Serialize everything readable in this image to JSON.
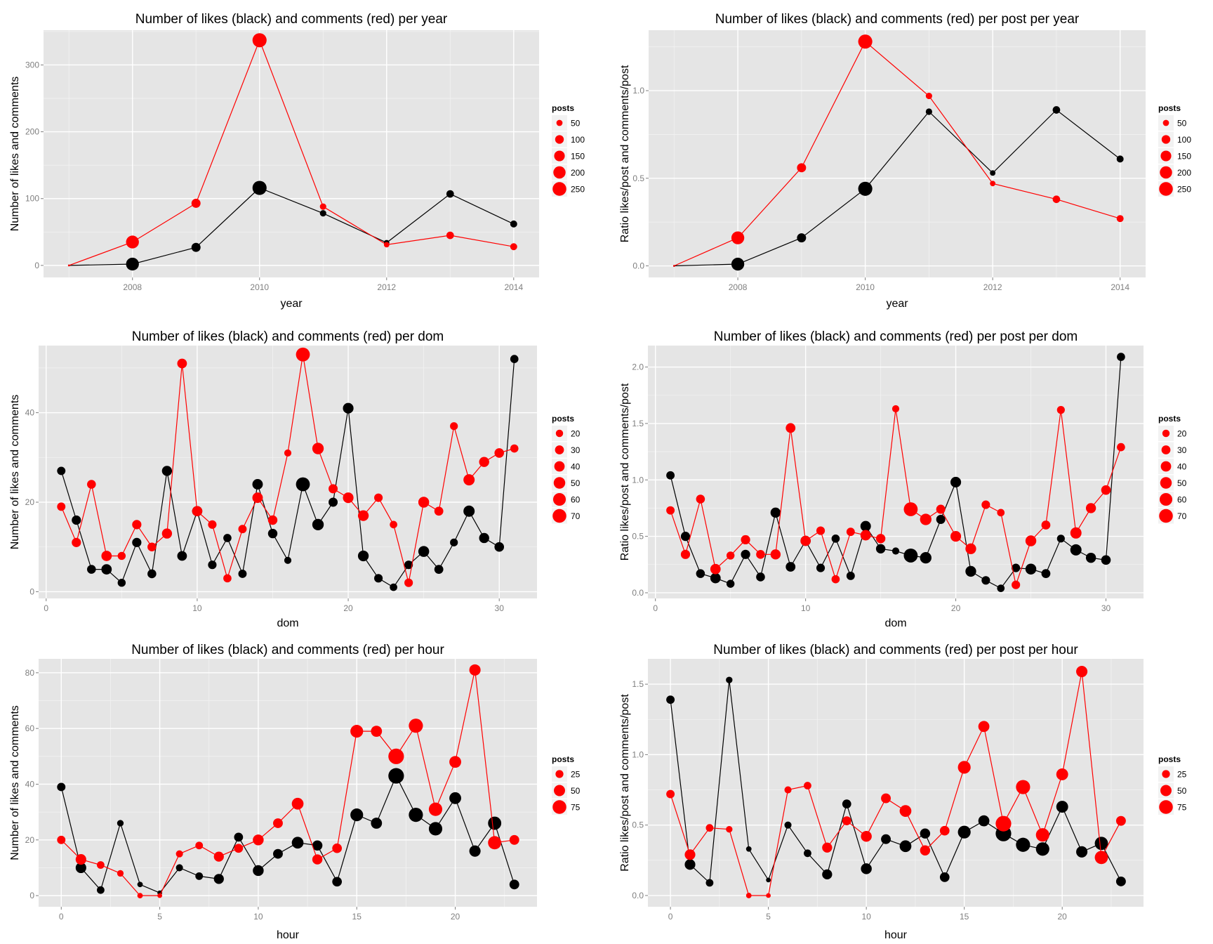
{
  "colors": {
    "likes": "#000000",
    "comments": "#ff0000",
    "panel_bg": "#e5e5e5",
    "grid_major": "#ffffff",
    "grid_minor": "#f2f2f2",
    "tick_text": "#7f7f7f",
    "legend_key_bg": "#f2f2f2"
  },
  "chart_data": [
    {
      "id": "year-counts",
      "type": "line",
      "title": "Number of likes (black) and comments (red) per year",
      "xlabel": "year",
      "ylabel": "Number of likes and comments",
      "x_ticks": [
        2008,
        2010,
        2012,
        2014
      ],
      "y_ticks": [
        0,
        100,
        200,
        300
      ],
      "xlim": [
        2006.6,
        2014.4
      ],
      "ylim": [
        -18,
        352
      ],
      "x": [
        2007,
        2008,
        2009,
        2010,
        2011,
        2012,
        2013,
        2014
      ],
      "series": [
        {
          "name": "likes",
          "color": "black",
          "values": [
            0,
            2,
            27,
            116,
            78,
            34,
            107,
            62
          ]
        },
        {
          "name": "comments",
          "color": "red",
          "values": [
            0,
            35,
            93,
            337,
            88,
            31,
            45,
            28
          ]
        }
      ],
      "posts": [
        1,
        220,
        110,
        265,
        55,
        40,
        75,
        65
      ],
      "legend": {
        "title": "posts",
        "position": "right",
        "entries": [
          50,
          100,
          150,
          200,
          250
        ]
      }
    },
    {
      "id": "year-ratio",
      "type": "line",
      "title": "Number of likes (black) and comments (red) per post per year",
      "xlabel": "year",
      "ylabel": "Ratio likes/post and comments/post",
      "x_ticks": [
        2008,
        2010,
        2012,
        2014
      ],
      "y_ticks": [
        "0.0",
        "0.5",
        "1.0"
      ],
      "xlim": [
        2006.6,
        2014.4
      ],
      "ylim": [
        -0.066,
        1.345
      ],
      "x": [
        2007,
        2008,
        2009,
        2010,
        2011,
        2012,
        2013,
        2014
      ],
      "series": [
        {
          "name": "likes",
          "color": "black",
          "values": [
            0,
            0.01,
            0.16,
            0.44,
            0.88,
            0.53,
            0.89,
            0.61
          ]
        },
        {
          "name": "comments",
          "color": "red",
          "values": [
            0,
            0.16,
            0.56,
            1.28,
            0.97,
            0.47,
            0.38,
            0.27
          ]
        }
      ],
      "posts": [
        1,
        220,
        110,
        265,
        55,
        40,
        75,
        65
      ],
      "legend": {
        "title": "posts",
        "position": "right",
        "entries": [
          50,
          100,
          150,
          200,
          250
        ]
      }
    },
    {
      "id": "dom-counts",
      "type": "line",
      "title": "Number of likes (black) and comments (red) per dom",
      "xlabel": "dom",
      "ylabel": "Number of likes and comments",
      "x_ticks": [
        0,
        10,
        20,
        30
      ],
      "y_ticks": [
        0,
        20,
        40
      ],
      "xlim": [
        -0.5,
        32.5
      ],
      "ylim": [
        -1.5,
        55
      ],
      "x": [
        1,
        2,
        3,
        4,
        5,
        6,
        7,
        8,
        9,
        10,
        11,
        12,
        13,
        14,
        15,
        16,
        17,
        18,
        19,
        20,
        21,
        22,
        23,
        24,
        25,
        26,
        27,
        28,
        29,
        30,
        31
      ],
      "series": [
        {
          "name": "likes",
          "color": "black",
          "values": [
            27,
            16,
            5,
            5,
            2,
            11,
            4,
            27,
            8,
            18,
            6,
            12,
            4,
            24,
            13,
            7,
            24,
            15,
            20,
            41,
            8,
            3,
            1,
            6,
            9,
            5,
            11,
            18,
            12,
            10,
            52
          ]
        },
        {
          "name": "comments",
          "color": "red",
          "values": [
            19,
            11,
            24,
            8,
            8,
            15,
            10,
            13,
            51,
            18,
            15,
            3,
            14,
            21,
            16,
            31,
            53,
            32,
            23,
            21,
            17,
            21,
            15,
            2,
            20,
            18,
            37,
            25,
            29,
            31,
            32
          ]
        }
      ],
      "posts": [
        26,
        32,
        29,
        40,
        24,
        32,
        29,
        38,
        35,
        39,
        27,
        25,
        26,
        41,
        33,
        19,
        72,
        49,
        31,
        42,
        43,
        27,
        21,
        27,
        44,
        30,
        23,
        47,
        38,
        34,
        25
      ],
      "legend": {
        "title": "posts",
        "position": "right",
        "entries": [
          20,
          30,
          40,
          50,
          60,
          70
        ]
      }
    },
    {
      "id": "dom-ratio",
      "type": "line",
      "title": "Number of likes (black) and comments (red) per post per dom",
      "xlabel": "dom",
      "ylabel": "Ratio likes/post and comments/post",
      "x_ticks": [
        0,
        10,
        20,
        30
      ],
      "y_ticks": [
        "0.0",
        "0.5",
        "1.0",
        "1.5",
        "2.0"
      ],
      "xlim": [
        -0.5,
        32.5
      ],
      "ylim": [
        -0.05,
        2.19
      ],
      "x": [
        1,
        2,
        3,
        4,
        5,
        6,
        7,
        8,
        9,
        10,
        11,
        12,
        13,
        14,
        15,
        16,
        17,
        18,
        19,
        20,
        21,
        22,
        23,
        24,
        25,
        26,
        27,
        28,
        29,
        30,
        31
      ],
      "series": [
        {
          "name": "likes",
          "color": "black",
          "values": [
            1.04,
            0.5,
            0.17,
            0.13,
            0.08,
            0.34,
            0.14,
            0.71,
            0.23,
            0.46,
            0.22,
            0.48,
            0.15,
            0.59,
            0.39,
            0.37,
            0.33,
            0.31,
            0.65,
            0.98,
            0.19,
            0.11,
            0.04,
            0.22,
            0.21,
            0.17,
            0.48,
            0.38,
            0.31,
            0.29,
            2.09
          ]
        },
        {
          "name": "comments",
          "color": "red",
          "values": [
            0.73,
            0.34,
            0.83,
            0.21,
            0.33,
            0.47,
            0.34,
            0.34,
            1.46,
            0.46,
            0.55,
            0.12,
            0.54,
            0.51,
            0.48,
            1.63,
            0.74,
            0.65,
            0.74,
            0.5,
            0.39,
            0.78,
            0.71,
            0.07,
            0.46,
            0.6,
            1.62,
            0.53,
            0.75,
            0.91,
            1.29
          ]
        }
      ],
      "posts": [
        26,
        32,
        29,
        40,
        24,
        32,
        29,
        38,
        35,
        39,
        27,
        25,
        26,
        41,
        33,
        19,
        72,
        49,
        31,
        42,
        43,
        27,
        21,
        27,
        44,
        30,
        23,
        47,
        38,
        34,
        25
      ],
      "legend": {
        "title": "posts",
        "position": "right",
        "entries": [
          20,
          30,
          40,
          50,
          60,
          70
        ]
      }
    },
    {
      "id": "hour-counts",
      "type": "line",
      "title": "Number of likes (black) and comments (red) per hour",
      "xlabel": "hour",
      "ylabel": "Number of likes and comments",
      "x_ticks": [
        0,
        5,
        10,
        15,
        20
      ],
      "y_ticks": [
        0,
        20,
        40,
        60,
        80
      ],
      "xlim": [
        -1.15,
        24.15
      ],
      "ylim": [
        -4,
        85
      ],
      "x": [
        0,
        1,
        2,
        3,
        4,
        5,
        6,
        7,
        8,
        9,
        10,
        11,
        12,
        13,
        14,
        15,
        16,
        17,
        18,
        19,
        20,
        21,
        22,
        23
      ],
      "series": [
        {
          "name": "likes",
          "color": "black",
          "values": [
            39,
            10,
            2,
            26,
            4,
            1,
            10,
            7,
            6,
            21,
            9,
            15,
            19,
            18,
            5,
            29,
            26,
            43,
            29,
            24,
            35,
            16,
            26,
            4
          ]
        },
        {
          "name": "comments",
          "color": "red",
          "values": [
            20,
            13,
            11,
            8,
            0,
            0,
            15,
            18,
            14,
            17,
            20,
            26,
            33,
            13,
            17,
            59,
            59,
            50,
            61,
            31,
            48,
            81,
            19,
            20
          ]
        }
      ],
      "posts": [
        28,
        45,
        23,
        17,
        12,
        9,
        20,
        23,
        40,
        32,
        47,
        38,
        55,
        41,
        37,
        65,
        49,
        97,
        80,
        72,
        56,
        51,
        70,
        38
      ],
      "legend": {
        "title": "posts",
        "position": "right",
        "entries": [
          25,
          50,
          75
        ]
      }
    },
    {
      "id": "hour-ratio",
      "type": "line",
      "title": "Number of likes (black) and comments (red) per post per hour",
      "xlabel": "hour",
      "ylabel": "Ratio likes/post and comments/post",
      "x_ticks": [
        0,
        5,
        10,
        15,
        20
      ],
      "y_ticks": [
        "0.0",
        "0.5",
        "1.0",
        "1.5"
      ],
      "xlim": [
        -1.15,
        24.15
      ],
      "ylim": [
        -0.08,
        1.68
      ],
      "x": [
        0,
        1,
        2,
        3,
        4,
        5,
        6,
        7,
        8,
        9,
        10,
        11,
        12,
        13,
        14,
        15,
        16,
        17,
        18,
        19,
        20,
        21,
        22,
        23
      ],
      "series": [
        {
          "name": "likes",
          "color": "black",
          "values": [
            1.39,
            0.22,
            0.09,
            1.53,
            0.33,
            0.11,
            0.5,
            0.3,
            0.15,
            0.65,
            0.19,
            0.4,
            0.35,
            0.44,
            0.13,
            0.45,
            0.53,
            0.44,
            0.36,
            0.33,
            0.63,
            0.31,
            0.37,
            0.1
          ]
        },
        {
          "name": "comments",
          "color": "red",
          "values": [
            0.72,
            0.29,
            0.48,
            0.47,
            0,
            0,
            0.75,
            0.78,
            0.34,
            0.53,
            0.42,
            0.69,
            0.6,
            0.32,
            0.46,
            0.91,
            1.2,
            0.51,
            0.77,
            0.43,
            0.86,
            1.59,
            0.27,
            0.53
          ]
        }
      ],
      "posts": [
        28,
        45,
        23,
        17,
        12,
        9,
        20,
        23,
        40,
        32,
        47,
        38,
        55,
        41,
        37,
        65,
        49,
        97,
        80,
        72,
        56,
        51,
        70,
        38
      ],
      "legend": {
        "title": "posts",
        "position": "right",
        "entries": [
          25,
          50,
          75
        ]
      }
    }
  ]
}
